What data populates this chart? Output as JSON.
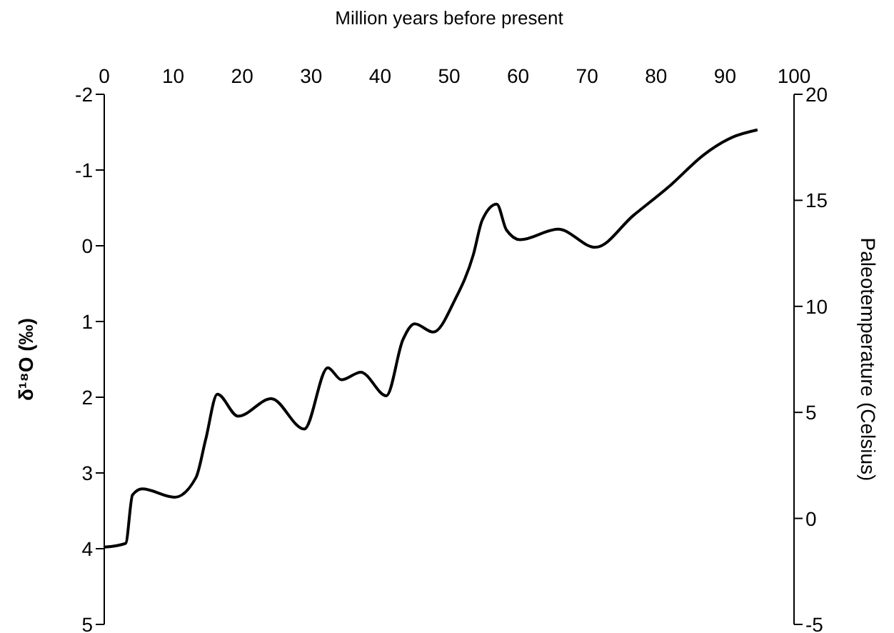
{
  "chart_data": {
    "type": "line",
    "xlabel": "Million years before present",
    "ylabel": "δ¹⁸O (‰)",
    "y2label": "Paleotemperature (Celsius)",
    "xlim": [
      0,
      100
    ],
    "xticks": [
      0,
      10,
      20,
      30,
      40,
      50,
      60,
      70,
      80,
      90,
      100
    ],
    "ylim": [
      5,
      -2
    ],
    "yticks": [
      -2,
      -1,
      0,
      1,
      2,
      3,
      4,
      5
    ],
    "y2lim": [
      -5,
      20
    ],
    "y2ticks": [
      -5,
      0,
      5,
      10,
      15,
      20
    ],
    "grid": false,
    "legend": false,
    "marker": "none",
    "line_style": "solid",
    "series": [
      {
        "color": "#000000",
        "x": [
          0,
          3.1,
          4.1,
          5.5,
          10.2,
          13.3,
          14.7,
          16.4,
          19.4,
          24.2,
          29.0,
          32.4,
          34.4,
          37.2,
          40.9,
          43.3,
          45.0,
          47.7,
          50.8,
          53.5,
          54.8,
          56.9,
          58.3,
          60.3,
          65.8,
          71.2,
          76.7,
          82.1,
          86.9,
          91.0,
          94.7
        ],
        "values": [
          3.98,
          3.93,
          3.29,
          3.21,
          3.32,
          3.06,
          2.56,
          1.96,
          2.25,
          2.02,
          2.42,
          1.61,
          1.77,
          1.67,
          1.98,
          1.24,
          1.03,
          1.14,
          0.72,
          0.12,
          -0.34,
          -0.55,
          -0.21,
          -0.08,
          -0.22,
          0.02,
          -0.4,
          -0.8,
          -1.2,
          -1.43,
          -1.53
        ]
      }
    ]
  }
}
